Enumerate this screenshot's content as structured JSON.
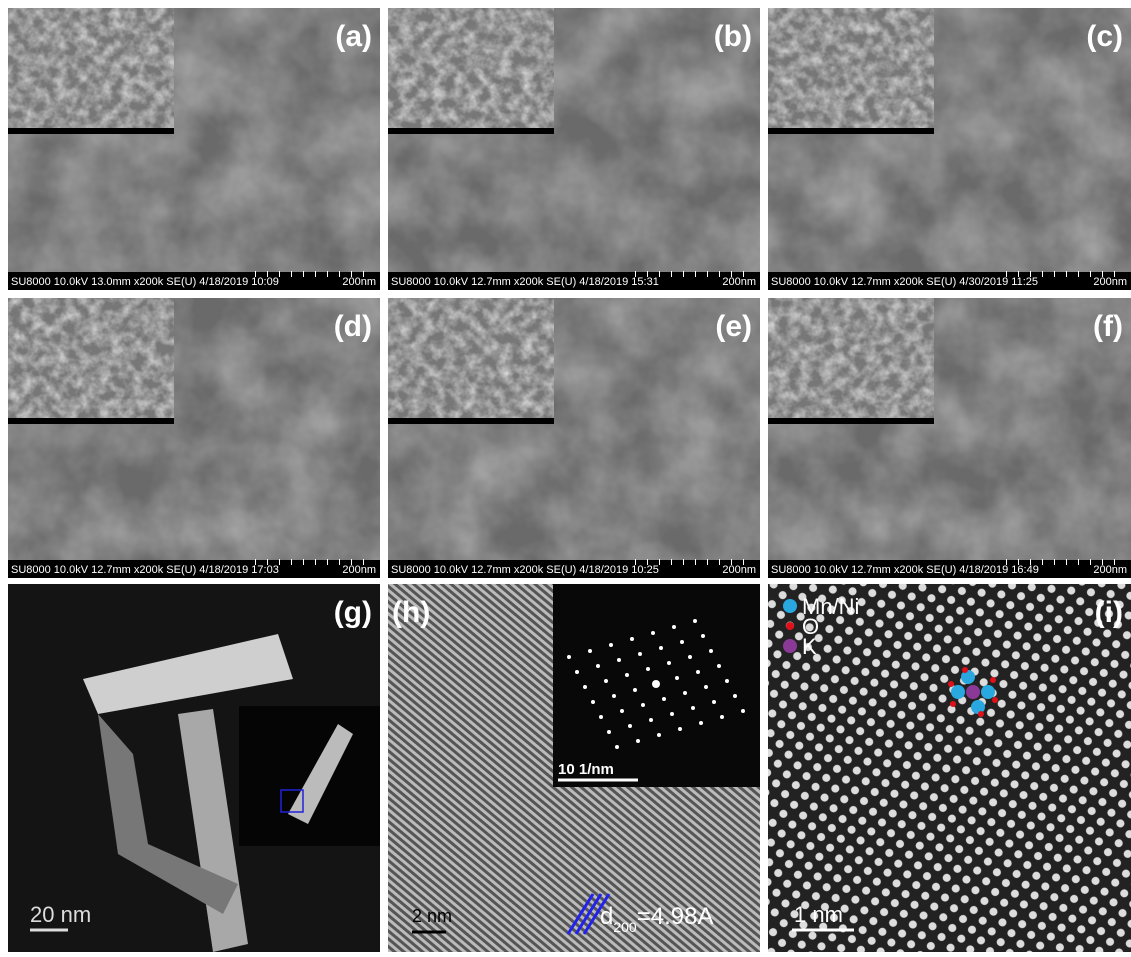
{
  "panels": [
    {
      "label": "(a)",
      "info": "SU8000 10.0kV 13.0mm x200k SE(U) 4/18/2019 10:09",
      "scale_bar": "200nm"
    },
    {
      "label": "(b)",
      "info": "SU8000 10.0kV 12.7mm x200k SE(U) 4/18/2019 15:31",
      "scale_bar": "200nm"
    },
    {
      "label": "(c)",
      "info": "SU8000 10.0kV 12.7mm x200k SE(U) 4/30/2019 11:25",
      "scale_bar": "200nm"
    },
    {
      "label": "(d)",
      "info": "SU8000 10.0kV 12.7mm x200k SE(U) 4/18/2019 17:03",
      "scale_bar": "200nm"
    },
    {
      "label": "(e)",
      "info": "SU8000 10.0kV 12.7mm x200k SE(U) 4/18/2019 10:25",
      "scale_bar": "200nm"
    },
    {
      "label": "(f)",
      "info": "SU8000 10.0kV 12.7mm x200k SE(U) 4/18/2019 16:49",
      "scale_bar": "200nm"
    }
  ],
  "panel_g": {
    "label": "(g)",
    "scale_bar": "20 nm"
  },
  "panel_h": {
    "label": "(h)",
    "scale_bar": "2 nm",
    "fft_scale_bar": "10 1/nm",
    "d_symbol": "d",
    "d_subscript": "200",
    "d_value": "=4.98A"
  },
  "panel_i": {
    "label": "(i)",
    "scale_bar": "1 nm",
    "legend": [
      "Mn/Ni",
      "O",
      "K"
    ]
  }
}
